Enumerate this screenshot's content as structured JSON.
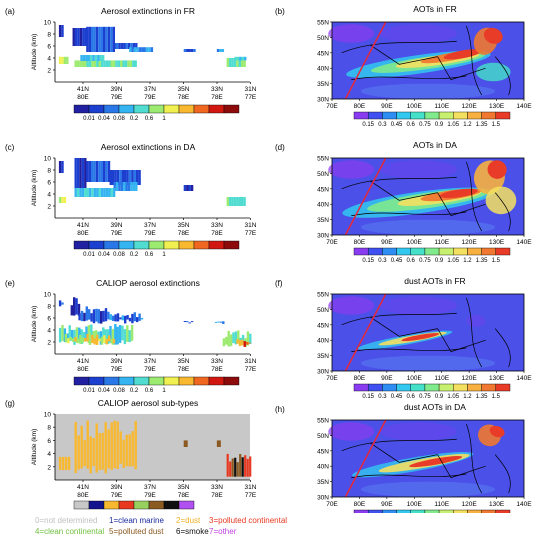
{
  "figure": {
    "panels": [
      {
        "id": "a",
        "label": "(a)",
        "title": "Aerosol extinctions in FR",
        "kind": "curtain"
      },
      {
        "id": "b",
        "label": "(b)",
        "title": "AOTs in FR",
        "kind": "map"
      },
      {
        "id": "c",
        "label": "(c)",
        "title": "Aerosol extinctions in DA",
        "kind": "curtain"
      },
      {
        "id": "d",
        "label": "(d)",
        "title": "AOTs in DA",
        "kind": "map"
      },
      {
        "id": "e",
        "label": "(e)",
        "title": "CALIOP aerosol extinctions",
        "kind": "curtain"
      },
      {
        "id": "f",
        "label": "(f)",
        "title": "dust AOTs in FR",
        "kind": "map"
      },
      {
        "id": "g",
        "label": "(g)",
        "title": "CALIOP aerosol sub-types",
        "kind": "subtype"
      },
      {
        "id": "h",
        "label": "(h)",
        "title": "dust AOTs in DA",
        "kind": "map"
      }
    ],
    "curtain_axis": {
      "ylabel": "Altitude (km)",
      "yticks": [
        "2",
        "4",
        "6",
        "8",
        "10"
      ],
      "xticks_top": [
        "41N",
        "39N",
        "37N",
        "35N",
        "33N",
        "31N"
      ],
      "xticks_bottom": [
        "80E",
        "79E",
        "79E",
        "78E",
        "78E",
        "77E"
      ]
    },
    "map_axis": {
      "lat_ticks": [
        "55N",
        "50N",
        "45N",
        "40N",
        "35N",
        "30N"
      ],
      "lon_ticks": [
        "70E",
        "80E",
        "90E",
        "100E",
        "110E",
        "120E",
        "130E",
        "140E"
      ]
    },
    "extinction_colorbar": {
      "labels": [
        "0.01",
        "0.04",
        "0.08",
        "0.2",
        "0.6",
        "1"
      ],
      "colors": [
        "#2020a0",
        "#1c3fd0",
        "#2a78e8",
        "#34b4f0",
        "#50dcd0",
        "#9cea70",
        "#f0f050",
        "#f8b830",
        "#f06820",
        "#d01810",
        "#8c0c0c"
      ]
    },
    "aot_colorbar": {
      "labels": [
        "0.15",
        "0.3",
        "0.45",
        "0.6",
        "0.75",
        "0.9",
        "1.05",
        "1.2",
        "1.35",
        "1.5"
      ],
      "colors": [
        "#8a3cf0",
        "#4050f0",
        "#2f8ef4",
        "#33c8f0",
        "#44e0c8",
        "#80ea8c",
        "#c8f070",
        "#f4e060",
        "#f8b040",
        "#f07830",
        "#e83c28"
      ]
    },
    "subtype_colorbar": {
      "labels": [
        "0",
        "1",
        "2",
        "3",
        "4",
        "5",
        "6",
        "7"
      ],
      "colors": [
        "#c8c8c8",
        "#14148c",
        "#f8b830",
        "#e83820",
        "#98d060",
        "#8a5a20",
        "#101010",
        "#b050f0"
      ]
    },
    "subtype_legend": [
      {
        "text": "0=not determined",
        "color": "#c0c0c0"
      },
      {
        "text": "1=clean marine",
        "color": "#1a2aa0"
      },
      {
        "text": "2=dust",
        "color": "#f0b020"
      },
      {
        "text": "3=polluted continental",
        "color": "#e83820"
      },
      {
        "text": "4=clean continental",
        "color": "#70c040"
      },
      {
        "text": "5=polluted dust",
        "color": "#8a5a20"
      },
      {
        "text": "6=smoke",
        "color": "#101010"
      },
      {
        "text": "7=other",
        "color": "#c040e0"
      }
    ]
  }
}
